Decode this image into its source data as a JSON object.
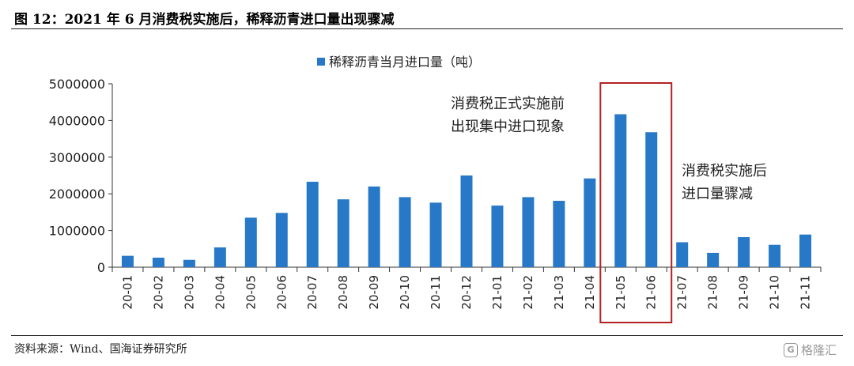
{
  "figure": {
    "title": "图 12：2021 年 6 月消费税实施后，稀释沥青进口量出现骤减",
    "source": "资料来源：Wind、国海证券研究所",
    "watermark_text": "格隆汇",
    "watermark_logo": "G"
  },
  "chart_data": {
    "type": "bar",
    "title": "",
    "xlabel": "",
    "ylabel": "",
    "legend": {
      "label": "稀释沥青当月进口量（吨）",
      "position": "top-center"
    },
    "ylim": [
      0,
      5000000
    ],
    "yticks": [
      0,
      1000000,
      2000000,
      3000000,
      4000000,
      5000000
    ],
    "categories": [
      "20-01",
      "20-02",
      "20-03",
      "20-04",
      "20-05",
      "20-06",
      "20-07",
      "20-08",
      "20-09",
      "20-10",
      "20-11",
      "20-12",
      "21-01",
      "21-02",
      "21-03",
      "21-04",
      "21-05",
      "21-06",
      "21-07",
      "21-08",
      "21-09",
      "21-10",
      "21-11"
    ],
    "series": [
      {
        "name": "稀释沥青当月进口量（吨）",
        "color": "#2878c8",
        "values": [
          310000,
          260000,
          200000,
          540000,
          1350000,
          1480000,
          2330000,
          1850000,
          2200000,
          1910000,
          1760000,
          2500000,
          1680000,
          1910000,
          1810000,
          2420000,
          4170000,
          3680000,
          680000,
          390000,
          820000,
          610000,
          890000
        ]
      }
    ],
    "highlight": {
      "categories": [
        "21-05",
        "21-06"
      ],
      "color": "#b22222"
    },
    "annotations": [
      {
        "lines": [
          "消费税正式实施前",
          "出现集中进口现象"
        ],
        "anchor": "before-highlight"
      },
      {
        "lines": [
          "消费税实施后",
          "进口量骤减"
        ],
        "anchor": "after-highlight"
      }
    ],
    "grid": false
  }
}
